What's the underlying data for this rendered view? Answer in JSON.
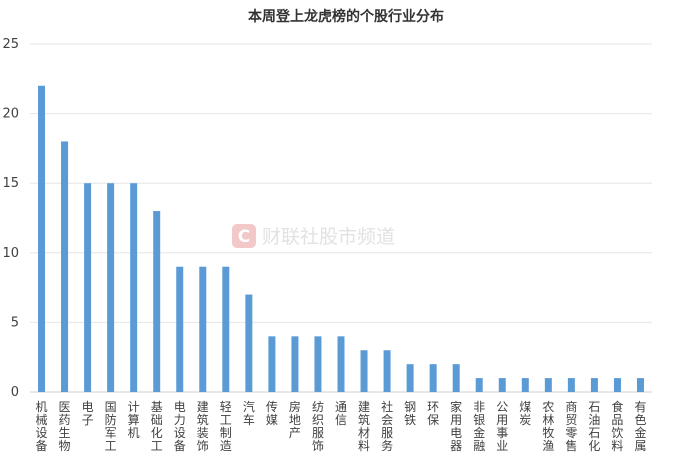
{
  "chart_data": {
    "type": "bar",
    "title": "本周登上龙虎榜的个股行业分布",
    "xlabel": "",
    "ylabel": "",
    "ylim": [
      0,
      25
    ],
    "yticks": [
      0,
      5,
      10,
      15,
      20,
      25
    ],
    "grid": true,
    "legend": "none",
    "categories": [
      "机械设备",
      "医药生物",
      "电子",
      "国防军工",
      "计算机",
      "基础化工",
      "电力设备",
      "建筑装饰",
      "轻工制造",
      "汽车",
      "传媒",
      "房地产",
      "纺织服饰",
      "通信",
      "建筑材料",
      "社会服务",
      "钢铁",
      "环保",
      "家用电器",
      "非银金融",
      "公用事业",
      "煤炭",
      "农林牧渔",
      "商贸零售",
      "石油石化",
      "食品饮料",
      "有色金属"
    ],
    "values": [
      22,
      18,
      15,
      15,
      15,
      13,
      9,
      9,
      9,
      7,
      4,
      4,
      4,
      4,
      3,
      3,
      2,
      2,
      2,
      1,
      1,
      1,
      1,
      1,
      1,
      1,
      1
    ],
    "bar_color": "#5b9bd5"
  },
  "watermark": {
    "logo_letter": "C",
    "text": "财联社股市频道",
    "color": "#f2c8c8"
  }
}
